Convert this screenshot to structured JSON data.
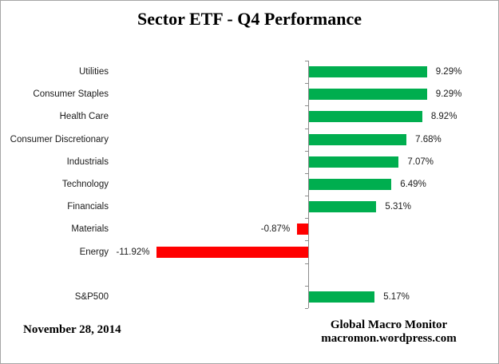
{
  "title": "Sector ETF - Q4 Performance",
  "footer": {
    "date": "November 28, 2014",
    "source_line1": "Global Macro Monitor",
    "source_line2": "macromon.wordpress.com"
  },
  "colors": {
    "positive_bar": "#00ae4f",
    "negative_bar": "#ff0000",
    "axis": "#8c8c8c",
    "text": "#1a1a1a"
  },
  "chart_data": {
    "type": "bar",
    "orientation": "horizontal",
    "title": "Sector ETF - Q4 Performance",
    "xlabel": "",
    "ylabel": "",
    "value_unit": "percent",
    "xlim": [
      -12.5,
      15
    ],
    "grid": false,
    "legend": "none",
    "categories": [
      "Utilities",
      "Consumer Staples",
      "Health Care",
      "Consumer Discretionary",
      "Industrials",
      "Technology",
      "Financials",
      "Materials",
      "Energy",
      "",
      "S&P500"
    ],
    "values": [
      9.29,
      9.29,
      8.92,
      7.68,
      7.07,
      6.49,
      5.31,
      -0.87,
      -11.92,
      null,
      5.17
    ],
    "value_labels": [
      "9.29%",
      "9.29%",
      "8.92%",
      "7.68%",
      "7.07%",
      "6.49%",
      "5.31%",
      "-0.87%",
      "-11.92%",
      "",
      "5.17%"
    ]
  }
}
